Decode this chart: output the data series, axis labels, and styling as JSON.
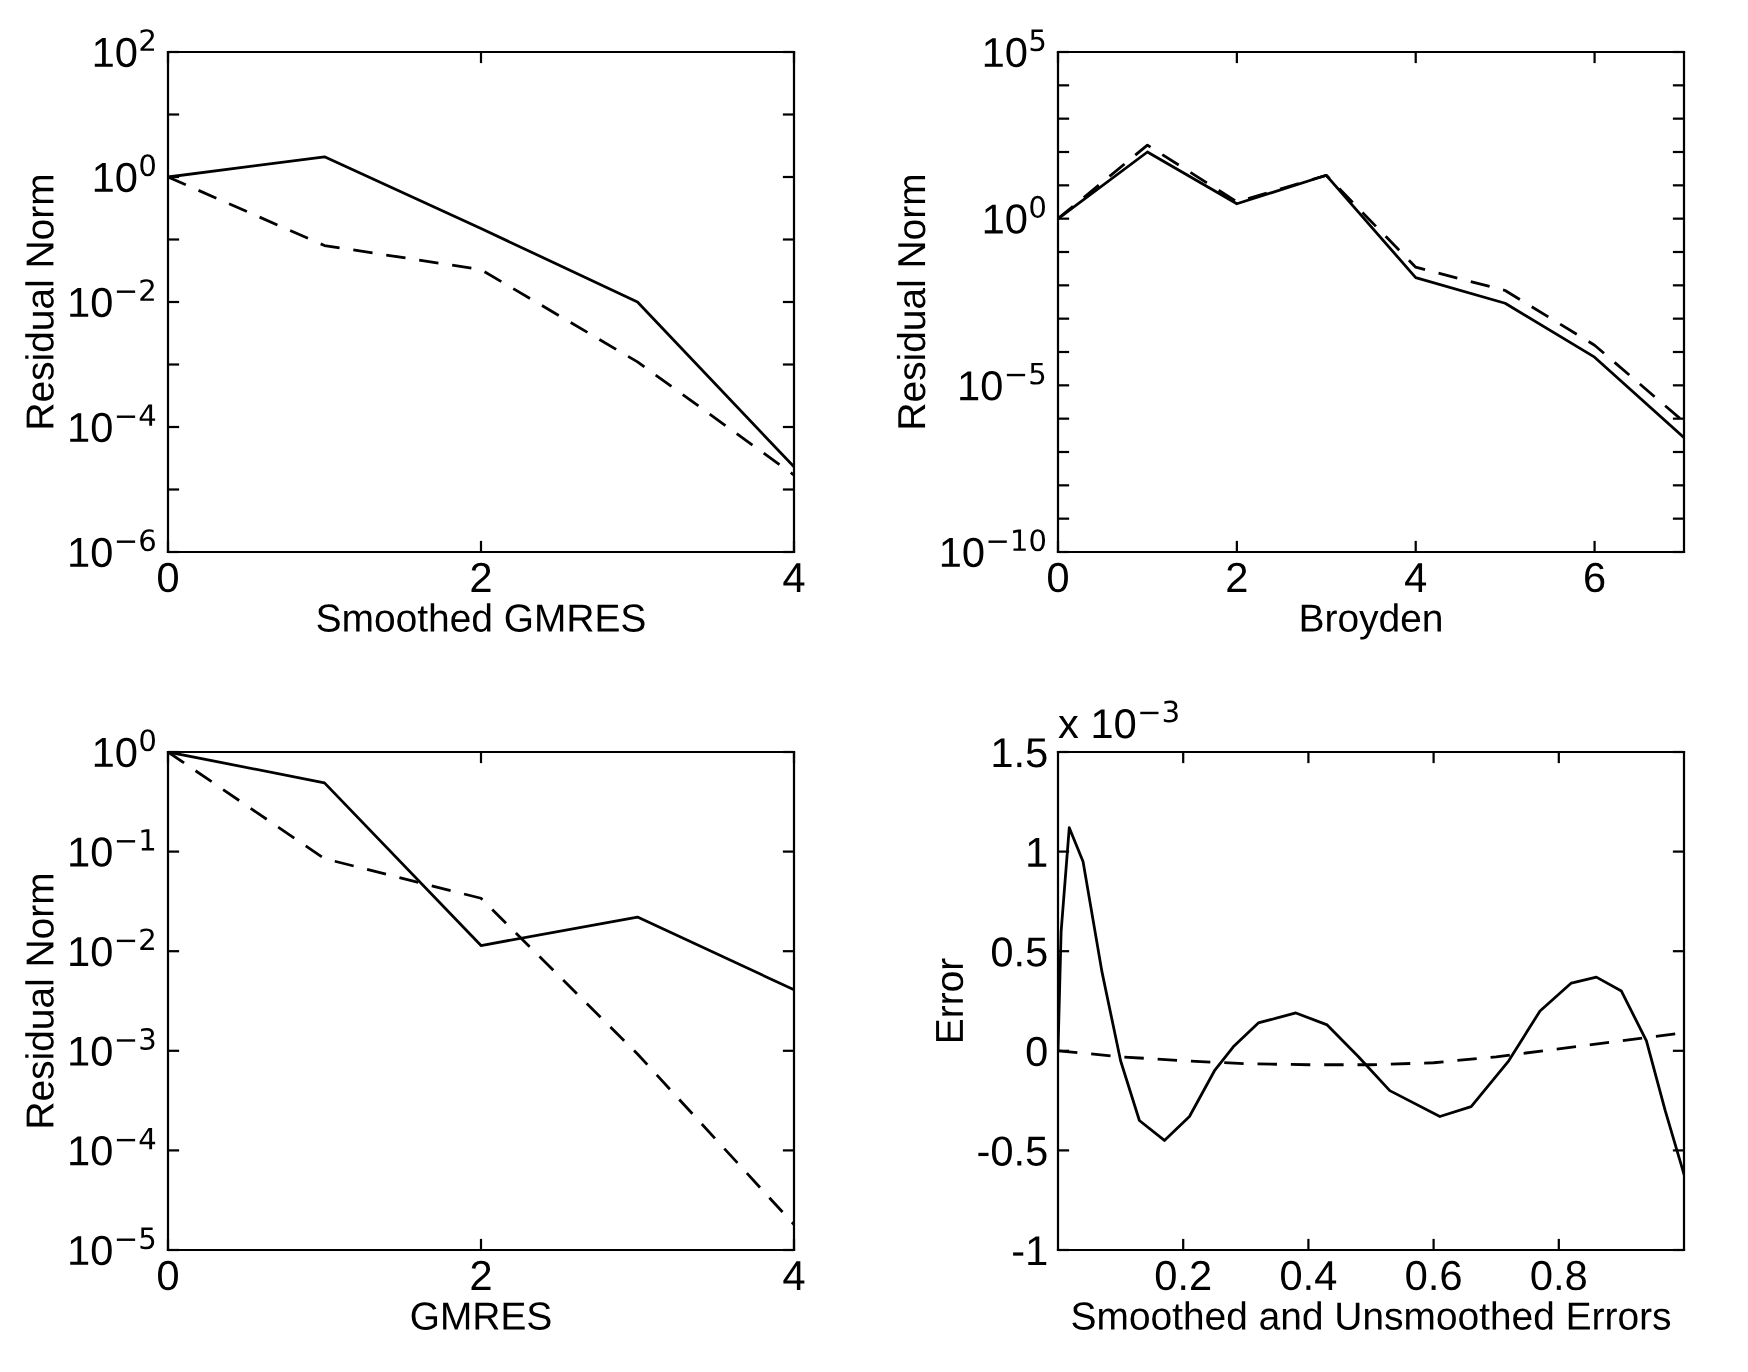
{
  "chart_data": [
    {
      "type": "line",
      "xlabel": "Smoothed GMRES",
      "ylabel": "Residual Norm",
      "log": "y",
      "x": [
        0,
        1,
        2,
        3,
        4
      ],
      "xlim": [
        0,
        4
      ],
      "xticks": [
        0,
        2,
        4
      ],
      "ylim": [
        1e-06,
        100
      ],
      "yticks": [
        {
          "value": 1e-06,
          "label": "10$^{−6}$"
        },
        {
          "value": 1e-05,
          "label": null
        },
        {
          "value": 0.0001,
          "label": "10$^{−4}$"
        },
        {
          "value": 0.001,
          "label": null
        },
        {
          "value": 0.01,
          "label": "10$^{−2}$"
        },
        {
          "value": 0.1,
          "label": null
        },
        {
          "value": 1,
          "label": "10$^{0}$"
        },
        {
          "value": 10,
          "label": null
        },
        {
          "value": 100,
          "label": "10$^{2}$"
        }
      ],
      "series": [
        {
          "color": "#000000",
          "line_style": "solid",
          "values": [
            1,
            2.1,
            0.15,
            0.01,
            2.3e-05
          ]
        },
        {
          "color": "#000000",
          "line_style": "dashed",
          "values": [
            1,
            0.08,
            0.033,
            0.0011,
            1.7e-05
          ]
        }
      ]
    },
    {
      "type": "line",
      "xlabel": "Broyden",
      "ylabel": "Residual Norm",
      "log": "y",
      "x": [
        0,
        1,
        2,
        3,
        4,
        5,
        6,
        7
      ],
      "xlim": [
        0,
        7
      ],
      "xticks": [
        0,
        2,
        4,
        6
      ],
      "ylim": [
        1e-10,
        100000.0
      ],
      "yticks": [
        {
          "value": 1e-10,
          "label": "10$^{−10}$"
        },
        {
          "value": 1e-09,
          "label": null
        },
        {
          "value": 1e-08,
          "label": null
        },
        {
          "value": 1e-07,
          "label": null
        },
        {
          "value": 1e-06,
          "label": null
        },
        {
          "value": 1e-05,
          "label": "10$^{−5}$"
        },
        {
          "value": 0.0001,
          "label": null
        },
        {
          "value": 0.001,
          "label": null
        },
        {
          "value": 0.01,
          "label": null
        },
        {
          "value": 0.1,
          "label": null
        },
        {
          "value": 1,
          "label": "10$^{0}$"
        },
        {
          "value": 10,
          "label": null
        },
        {
          "value": 100,
          "label": null
        },
        {
          "value": 1000,
          "label": null
        },
        {
          "value": 10000,
          "label": null
        },
        {
          "value": 100000,
          "label": "10$^{5}$"
        }
      ],
      "series": [
        {
          "color": "#000000",
          "line_style": "solid",
          "values": [
            1,
            100,
            2.8,
            20,
            0.017,
            0.0029,
            7e-05,
            2.7e-07
          ]
        },
        {
          "color": "#000000",
          "line_style": "dashed",
          "values": [
            1,
            160,
            3.2,
            20,
            0.035,
            0.007,
            0.00016,
            8e-07
          ]
        }
      ]
    },
    {
      "type": "line",
      "xlabel": "GMRES",
      "ylabel": "Residual Norm",
      "log": "y",
      "x": [
        0,
        1,
        2,
        3,
        4
      ],
      "xlim": [
        0,
        4
      ],
      "xticks": [
        0,
        2,
        4
      ],
      "ylim": [
        1e-05,
        1
      ],
      "yticks": [
        {
          "value": 1e-05,
          "label": "10$^{−5}$"
        },
        {
          "value": 0.0001,
          "label": "10$^{−4}$"
        },
        {
          "value": 0.001,
          "label": "10$^{−3}$"
        },
        {
          "value": 0.01,
          "label": "10$^{−2}$"
        },
        {
          "value": 0.1,
          "label": "10$^{−1}$"
        },
        {
          "value": 1,
          "label": "10$^{0}$"
        }
      ],
      "series": [
        {
          "color": "#000000",
          "line_style": "solid",
          "values": [
            1,
            0.49,
            0.0114,
            0.022,
            0.0041
          ]
        },
        {
          "color": "#000000",
          "line_style": "dashed",
          "values": [
            1,
            0.085,
            0.034,
            0.00093,
            1.8e-05
          ]
        }
      ]
    },
    {
      "type": "line",
      "xlabel": "Smoothed and Unsmoothed Errors",
      "ylabel": "Error",
      "annotations": [
        "x 10$^{−3}$"
      ],
      "xlim": [
        0,
        1
      ],
      "xticks": [
        0.2,
        0.4,
        0.6,
        0.8
      ],
      "ylim": [
        -1,
        1.5
      ],
      "yticks": [
        -1,
        -0.5,
        0,
        0.5,
        1,
        1.5
      ],
      "series": [
        {
          "color": "#000000",
          "line_style": "solid",
          "x": [
            0,
            0.005,
            0.018,
            0.04,
            0.07,
            0.1,
            0.13,
            0.17,
            0.21,
            0.25,
            0.28,
            0.32,
            0.38,
            0.43,
            0.48,
            0.53,
            0.61,
            0.66,
            0.72,
            0.77,
            0.82,
            0.86,
            0.9,
            0.94,
            0.97,
            1.0
          ],
          "values": [
            0,
            0.6,
            1.12,
            0.95,
            0.4,
            -0.05,
            -0.35,
            -0.45,
            -0.33,
            -0.1,
            0.02,
            0.14,
            0.19,
            0.13,
            -0.03,
            -0.2,
            -0.33,
            -0.28,
            -0.05,
            0.2,
            0.34,
            0.37,
            0.3,
            0.05,
            -0.3,
            -0.62
          ]
        },
        {
          "color": "#000000",
          "line_style": "dashed",
          "x": [
            0,
            0.1,
            0.2,
            0.3,
            0.4,
            0.5,
            0.6,
            0.7,
            0.8,
            0.9,
            1.0
          ],
          "values": [
            0,
            -0.03,
            -0.05,
            -0.065,
            -0.07,
            -0.07,
            -0.06,
            -0.03,
            0.01,
            0.05,
            0.09
          ]
        }
      ]
    }
  ]
}
